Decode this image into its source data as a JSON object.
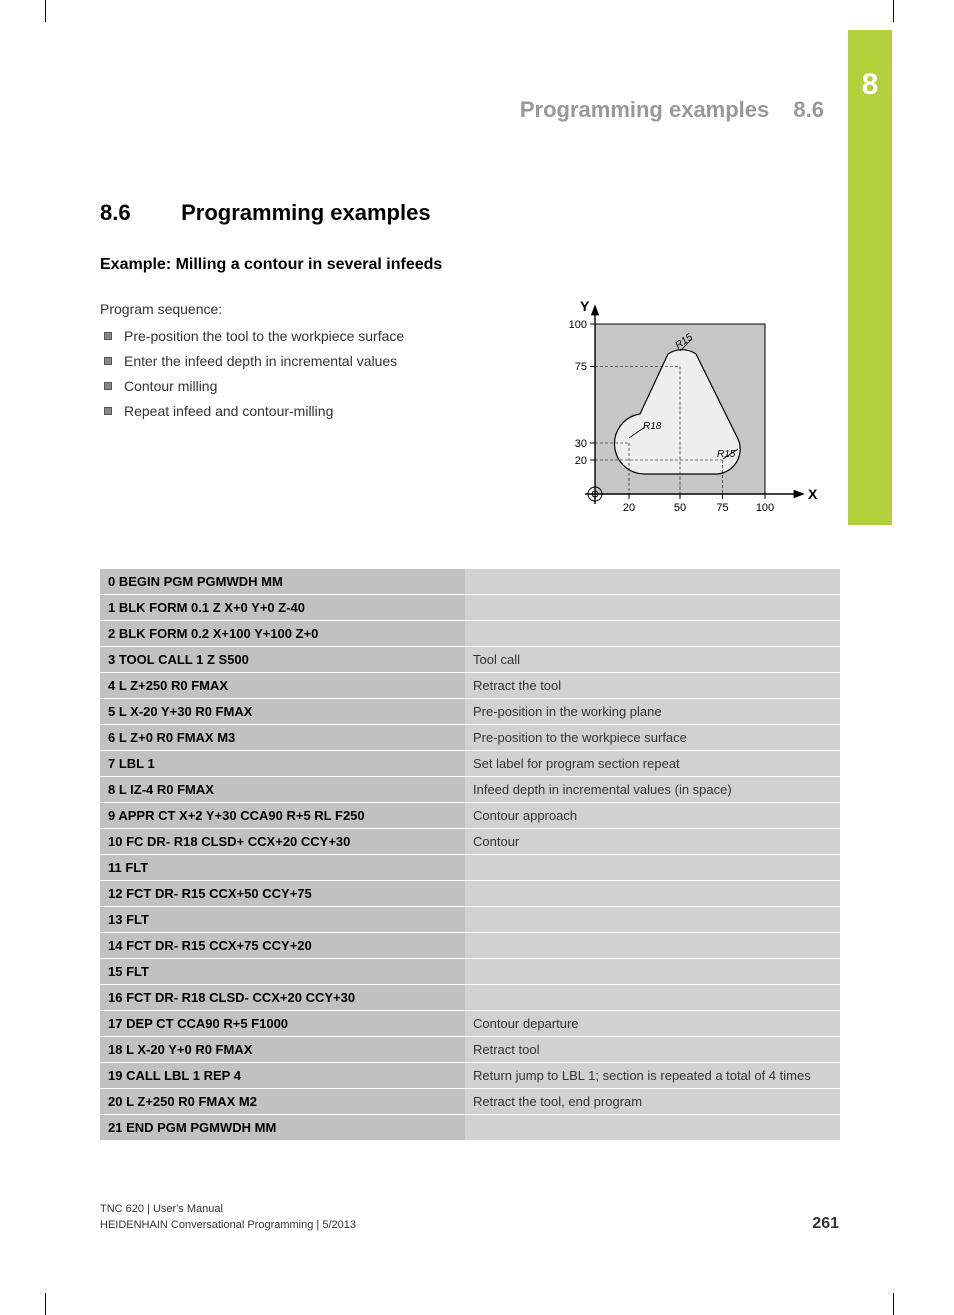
{
  "chapter_tab": "8",
  "running_header": {
    "title": "Programming examples",
    "section": "8.6"
  },
  "section": {
    "number": "8.6",
    "title": "Programming examples"
  },
  "subtitle": "Example: Milling a contour in several infeeds",
  "sequence_label": "Program sequence:",
  "sequence": [
    "Pre-position the tool to the workpiece surface",
    "Enter the infeed depth in incremental values",
    "Contour milling",
    "Repeat infeed and contour-milling"
  ],
  "diagram": {
    "type": "diagram",
    "background_color": "#ffffff",
    "workpiece_fill": "#c6c6c6",
    "contour_fill": "#eeeeee",
    "stroke": "#000000",
    "axis_label_x": "X",
    "axis_label_y": "Y",
    "y_ticks": [
      20,
      30,
      75,
      100
    ],
    "x_ticks": [
      20,
      50,
      75,
      100
    ],
    "radii_labels": [
      "R15",
      "R18",
      "R15"
    ],
    "font_size": 11
  },
  "program_table": {
    "rows": [
      {
        "code": "0 BEGIN PGM PGMWDH MM",
        "desc": ""
      },
      {
        "code": "1 BLK FORM 0.1 Z X+0 Y+0 Z-40",
        "desc": ""
      },
      {
        "code": "2 BLK FORM 0.2 X+100 Y+100 Z+0",
        "desc": ""
      },
      {
        "code": "3 TOOL CALL 1 Z S500",
        "desc": "Tool call"
      },
      {
        "code": "4 L Z+250 R0 FMAX",
        "desc": "Retract the tool"
      },
      {
        "code": "5 L X-20 Y+30 R0 FMAX",
        "desc": "Pre-position in the working plane"
      },
      {
        "code": "6 L Z+0 R0 FMAX M3",
        "desc": "Pre-position to the workpiece surface"
      },
      {
        "code": "7 LBL 1",
        "desc": "Set label for program section repeat"
      },
      {
        "code": "8 L IZ-4 R0 FMAX",
        "desc": "Infeed depth in incremental values (in space)"
      },
      {
        "code": "9 APPR CT X+2 Y+30 CCA90 R+5 RL F250",
        "desc": "Contour approach"
      },
      {
        "code": "10 FC DR- R18 CLSD+ CCX+20 CCY+30",
        "desc": "Contour"
      },
      {
        "code": "11 FLT",
        "desc": ""
      },
      {
        "code": "12 FCT DR- R15 CCX+50 CCY+75",
        "desc": ""
      },
      {
        "code": "13 FLT",
        "desc": ""
      },
      {
        "code": "14 FCT DR- R15 CCX+75 CCY+20",
        "desc": ""
      },
      {
        "code": "15 FLT",
        "desc": ""
      },
      {
        "code": "16 FCT DR- R18 CLSD- CCX+20 CCY+30",
        "desc": ""
      },
      {
        "code": "17 DEP CT CCA90 R+5 F1000",
        "desc": "Contour departure"
      },
      {
        "code": "18 L X-20 Y+0 R0 FMAX",
        "desc": "Retract tool"
      },
      {
        "code": "19 CALL LBL 1 REP 4",
        "desc": "Return jump to LBL 1; section is repeated a total of 4 times"
      },
      {
        "code": "20 L Z+250 R0 FMAX M2",
        "desc": "Retract the tool, end program"
      },
      {
        "code": "21 END PGM PGMWDH MM",
        "desc": ""
      }
    ]
  },
  "footer": {
    "line1": "TNC 620 | User's Manual",
    "line2": "HEIDENHAIN Conversational Programming | 5/2013",
    "page": "261"
  }
}
